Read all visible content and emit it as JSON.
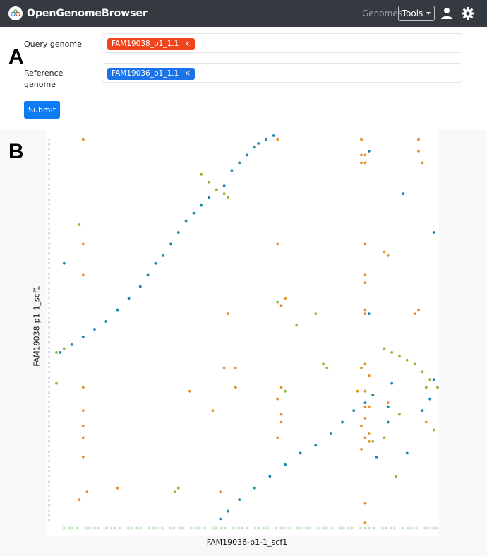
{
  "navbar": {
    "brand": "OpenGenomeBrowser",
    "genomes_link": "Genomes",
    "tools_label": "Tools",
    "icons": [
      "logo-icon",
      "user-icon",
      "gear-icon"
    ]
  },
  "panel_labels": {
    "a": "A",
    "b": "B"
  },
  "form": {
    "query_label": "Query genome",
    "query_tag": "FAM19038_p1_1.1",
    "reference_label_line1": "Reference",
    "reference_label_line2": "genome",
    "reference_tag": "FAM19036_p1_1.1",
    "tag_remove": "×",
    "submit_label": "Submit"
  },
  "colors": {
    "navbar": "#343a40",
    "query_tag": "#f0441c",
    "reference_tag": "#1a73e8",
    "submit": "#0d7cf2",
    "forward_match": "#1b87a6",
    "reverse_match": "#8cb93a",
    "repeat_match": "#e8902c",
    "gene_arrows_y": "#c9c3e3",
    "gene_arrows_x": "#9fd49b"
  },
  "chart_data": {
    "type": "scatter",
    "xlabel": "FAM19036-p1-1_scf1",
    "ylabel": "FAM19038-p1-1_scf1",
    "xlim": [
      0,
      1
    ],
    "ylim": [
      0,
      1
    ],
    "grid": false,
    "series": [
      {
        "color": "#1b87a6",
        "points": [
          [
            0.01,
            0.44
          ],
          [
            0.04,
            0.46
          ],
          [
            0.07,
            0.48
          ],
          [
            0.1,
            0.5
          ],
          [
            0.13,
            0.52
          ],
          [
            0.16,
            0.55
          ],
          [
            0.19,
            0.58
          ],
          [
            0.22,
            0.61
          ],
          [
            0.24,
            0.64
          ],
          [
            0.26,
            0.67
          ],
          [
            0.28,
            0.69
          ],
          [
            0.3,
            0.72
          ],
          [
            0.32,
            0.75
          ],
          [
            0.34,
            0.78
          ],
          [
            0.36,
            0.8
          ],
          [
            0.38,
            0.82
          ],
          [
            0.4,
            0.84
          ],
          [
            0.42,
            0.86
          ],
          [
            0.44,
            0.87
          ],
          [
            0.46,
            0.91
          ],
          [
            0.48,
            0.93
          ],
          [
            0.5,
            0.95
          ],
          [
            0.52,
            0.97
          ],
          [
            0.53,
            0.98
          ],
          [
            0.55,
            0.99
          ],
          [
            0.57,
            1.0
          ],
          [
            0.43,
            0.01
          ],
          [
            0.45,
            0.03
          ],
          [
            0.48,
            0.06
          ],
          [
            0.52,
            0.09
          ],
          [
            0.56,
            0.12
          ],
          [
            0.6,
            0.15
          ],
          [
            0.64,
            0.18
          ],
          [
            0.68,
            0.2
          ],
          [
            0.72,
            0.23
          ],
          [
            0.75,
            0.26
          ],
          [
            0.78,
            0.29
          ],
          [
            0.81,
            0.31
          ],
          [
            0.83,
            0.33
          ],
          [
            0.02,
            0.67
          ],
          [
            0.96,
            0.29
          ],
          [
            0.98,
            0.32
          ],
          [
            0.99,
            0.37
          ],
          [
            0.82,
            0.96
          ],
          [
            0.91,
            0.85
          ],
          [
            0.99,
            0.75
          ],
          [
            0.87,
            0.3
          ],
          [
            0.82,
            0.54
          ],
          [
            0.87,
            0.26
          ],
          [
            0.88,
            0.36
          ],
          [
            0.84,
            0.17
          ],
          [
            0.92,
            0.18
          ]
        ]
      },
      {
        "color": "#8cb93a",
        "points": [
          [
            0.0,
            0.44
          ],
          [
            0.02,
            0.45
          ],
          [
            0.38,
            0.9
          ],
          [
            0.4,
            0.88
          ],
          [
            0.42,
            0.86
          ],
          [
            0.44,
            0.85
          ],
          [
            0.45,
            0.84
          ],
          [
            0.86,
            0.45
          ],
          [
            0.88,
            0.44
          ],
          [
            0.9,
            0.43
          ],
          [
            0.92,
            0.42
          ],
          [
            0.94,
            0.41
          ],
          [
            0.96,
            0.39
          ],
          [
            0.98,
            0.37
          ],
          [
            1.0,
            0.35
          ],
          [
            0.0,
            0.36
          ],
          [
            0.7,
            0.41
          ],
          [
            0.71,
            0.4
          ],
          [
            0.06,
            0.77
          ],
          [
            0.32,
            0.09
          ],
          [
            0.31,
            0.08
          ],
          [
            0.58,
            0.57
          ],
          [
            0.68,
            0.54
          ],
          [
            0.6,
            0.34
          ],
          [
            0.99,
            0.24
          ],
          [
            0.63,
            0.51
          ],
          [
            0.86,
            0.22
          ],
          [
            0.89,
            0.12
          ],
          [
            0.83,
            0.21
          ],
          [
            0.97,
            0.35
          ],
          [
            0.9,
            0.28
          ]
        ]
      },
      {
        "color": "#e8902c",
        "points": [
          [
            0.07,
            0.99
          ],
          [
            0.07,
            0.72
          ],
          [
            0.07,
            0.64
          ],
          [
            0.07,
            0.35
          ],
          [
            0.07,
            0.29
          ],
          [
            0.07,
            0.25
          ],
          [
            0.07,
            0.22
          ],
          [
            0.07,
            0.17
          ],
          [
            0.06,
            0.06
          ],
          [
            0.08,
            0.08
          ],
          [
            0.16,
            0.09
          ],
          [
            0.35,
            0.34
          ],
          [
            0.41,
            0.29
          ],
          [
            0.45,
            0.54
          ],
          [
            0.47,
            0.35
          ],
          [
            0.59,
            0.56
          ],
          [
            0.6,
            0.58
          ],
          [
            0.58,
            0.22
          ],
          [
            0.59,
            0.26
          ],
          [
            0.59,
            0.28
          ],
          [
            0.58,
            0.32
          ],
          [
            0.59,
            0.35
          ],
          [
            0.58,
            0.72
          ],
          [
            0.58,
            0.99
          ],
          [
            0.8,
            0.99
          ],
          [
            0.8,
            0.95
          ],
          [
            0.8,
            0.93
          ],
          [
            0.81,
            0.95
          ],
          [
            0.81,
            0.93
          ],
          [
            0.81,
            0.72
          ],
          [
            0.81,
            0.64
          ],
          [
            0.81,
            0.62
          ],
          [
            0.81,
            0.55
          ],
          [
            0.81,
            0.54
          ],
          [
            0.81,
            0.41
          ],
          [
            0.8,
            0.4
          ],
          [
            0.81,
            0.3
          ],
          [
            0.81,
            0.27
          ],
          [
            0.82,
            0.23
          ],
          [
            0.81,
            0.22
          ],
          [
            0.8,
            0.19
          ],
          [
            0.81,
            0.05
          ],
          [
            0.81,
            0.0
          ],
          [
            0.95,
            0.99
          ],
          [
            0.95,
            0.96
          ],
          [
            0.96,
            0.93
          ],
          [
            0.95,
            0.55
          ],
          [
            0.94,
            0.54
          ],
          [
            0.79,
            0.34
          ],
          [
            0.82,
            0.38
          ],
          [
            0.86,
            0.7
          ],
          [
            0.87,
            0.69
          ],
          [
            0.43,
            0.08
          ],
          [
            0.44,
            0.4
          ],
          [
            0.97,
            0.26
          ],
          [
            0.82,
            0.3
          ],
          [
            0.8,
            0.25
          ],
          [
            0.82,
            0.21
          ],
          [
            0.47,
            0.4
          ],
          [
            0.87,
            0.31
          ],
          [
            0.81,
            0.34
          ]
        ]
      }
    ]
  }
}
